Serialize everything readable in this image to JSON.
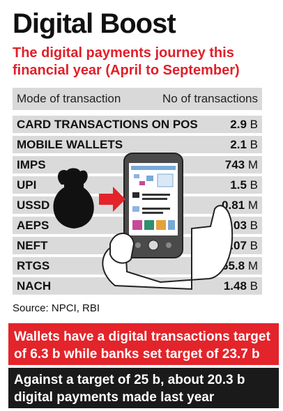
{
  "title": "Digital Boost",
  "subtitle": "The digital payments journey this financial year (April to September)",
  "table": {
    "col_mode": "Mode of transaction",
    "col_count": "No of transactions"
  },
  "chart_data": {
    "type": "table",
    "title": "Digital Boost",
    "subtitle": "The digital payments journey this financial year (April to September)",
    "columns": [
      "Mode of transaction",
      "No of transactions"
    ],
    "rows": [
      {
        "mode": "CARD TRANSACTIONS ON POS",
        "value": "2.9",
        "unit": "B"
      },
      {
        "mode": "MOBILE WALLETS",
        "value": "2.1",
        "unit": "B"
      },
      {
        "mode": "IMPS",
        "value": "743",
        "unit": "M"
      },
      {
        "mode": "UPI",
        "value": "1.5",
        "unit": "B"
      },
      {
        "mode": "USSD",
        "value": "0.81",
        "unit": "M"
      },
      {
        "mode": "AEPS",
        "value": "1.03",
        "unit": "B"
      },
      {
        "mode": "NEFT",
        "value": "1.07",
        "unit": "B"
      },
      {
        "mode": "RTGS",
        "value": "65.8",
        "unit": "M"
      },
      {
        "mode": "NACH",
        "value": "1.48",
        "unit": "B"
      }
    ]
  },
  "source": "Source: NPCI, RBI",
  "band_red_text": "Wallets have a digital transactions target of 6.3 b while banks set target of 23.7 b",
  "band_black_text": "Against a target of 25 b, about 20.3 b digital payments made last year",
  "colors": {
    "accent_red": "#e3242b",
    "row_bg": "#dadada",
    "dark_band": "#1a1a1a"
  },
  "icons": [
    "money-bag-icon",
    "arrow-right-icon",
    "smartphone-in-hand-icon"
  ]
}
